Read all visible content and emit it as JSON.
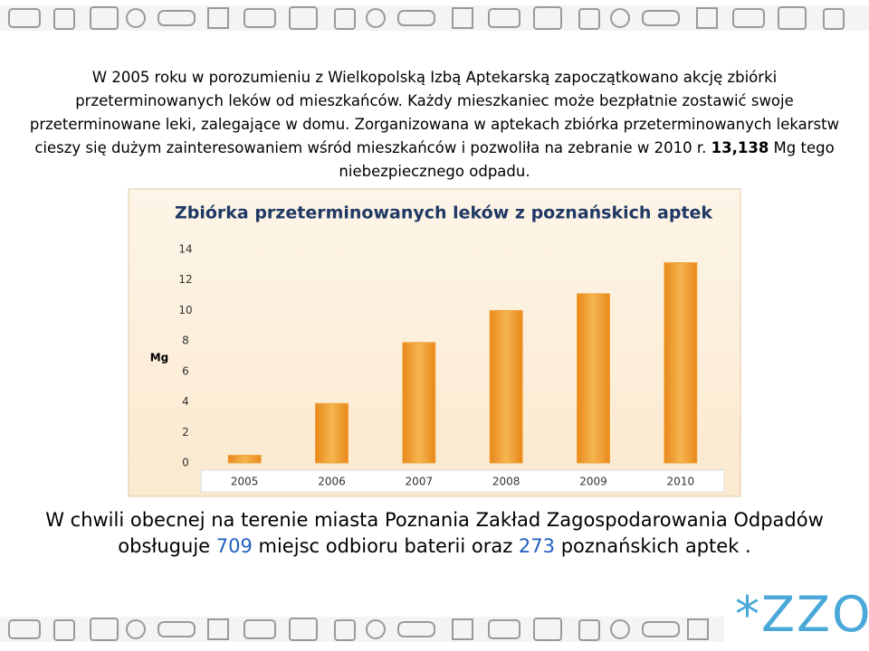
{
  "intro": {
    "before": "W 2005 roku w porozumieniu z Wielkopolską Izbą Aptekarską zapoczątkowano akcję zbiórki przeterminowanych leków od mieszkańców. Każdy mieszkaniec może bezpłatnie zostawić swoje przeterminowane leki, zalegające w domu. Zorganizowana w aptekach zbiórka przeterminowanych lekarstw cieszy się dużym zainteresowaniem wśród mieszkańców i pozwoliła na zebranie w  2010 r. ",
    "highlight": "13,138",
    "after": " Mg tego niebezpiecznego odpadu."
  },
  "chart_data": {
    "type": "bar",
    "title": "Zbiórka przeterminowanych leków z poznańskich aptek",
    "y_label": "Mg",
    "categories": [
      "2005",
      "2006",
      "2007",
      "2008",
      "2009",
      "2010"
    ],
    "values": [
      0.5,
      3.9,
      7.9,
      10.0,
      11.1,
      13.138
    ],
    "color": "#f2a33a",
    "ylim": [
      0,
      14
    ],
    "yticks": [
      0,
      2,
      4,
      6,
      8,
      10,
      12,
      14
    ],
    "grid": false
  },
  "footer": {
    "parts": [
      "W chwili obecnej na terenie miasta Poznania Zakład Zagospodarowania Odpadów obsługuje ",
      "709",
      " miejsc odbioru baterii oraz ",
      "273",
      " poznańskich aptek ."
    ]
  },
  "logo": "*ZZO"
}
